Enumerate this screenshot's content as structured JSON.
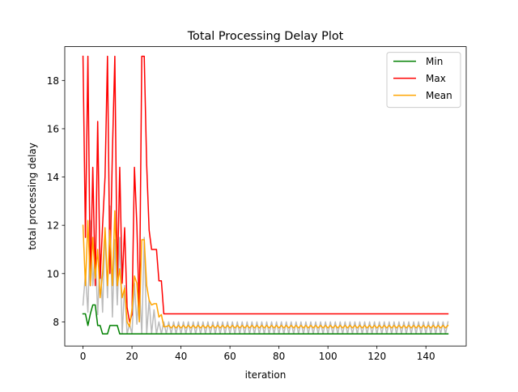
{
  "chart_data": {
    "type": "line",
    "title": "Total Processing Delay Plot",
    "xlabel": "iteration",
    "ylabel": "total processing delay",
    "xlim": [
      -7.45,
      156.45
    ],
    "ylim": [
      7.0,
      19.4
    ],
    "xticks": [
      0,
      20,
      40,
      60,
      80,
      100,
      120,
      140
    ],
    "yticks": [
      8,
      10,
      12,
      14,
      16,
      18
    ],
    "legend_position": "top-right",
    "series": [
      {
        "name": "Min",
        "color": "#008000",
        "x": [
          0,
          1,
          2,
          3,
          4,
          5,
          6,
          7,
          8,
          9,
          10,
          11,
          12,
          13,
          14,
          15,
          16,
          17,
          18,
          19,
          20,
          21,
          22,
          23,
          24,
          25,
          26,
          27,
          28,
          29,
          30,
          31,
          32,
          33,
          34,
          149
        ],
        "y": [
          8.33,
          8.33,
          7.85,
          8.33,
          8.7,
          8.7,
          7.85,
          7.85,
          7.5,
          7.5,
          7.5,
          7.85,
          7.85,
          7.85,
          7.85,
          7.5,
          7.5,
          7.5,
          7.5,
          7.5,
          7.5,
          7.5,
          7.5,
          7.5,
          7.5,
          7.5,
          7.5,
          7.5,
          7.5,
          7.5,
          7.5,
          7.5,
          7.5,
          7.5,
          7.5,
          7.5
        ]
      },
      {
        "name": "Max",
        "color": "#ff0000",
        "x": [
          0,
          1,
          2,
          3,
          4,
          5,
          6,
          7,
          8,
          9,
          10,
          11,
          12,
          13,
          14,
          15,
          16,
          17,
          18,
          19,
          20,
          21,
          22,
          23,
          24,
          25,
          26,
          27,
          28,
          29,
          30,
          31,
          32,
          33,
          149
        ],
        "y": [
          19.0,
          11.5,
          19.0,
          9.5,
          14.4,
          9.5,
          16.3,
          9.8,
          12.0,
          14.0,
          19.0,
          10.0,
          15.0,
          19.0,
          9.5,
          14.4,
          9.6,
          11.9,
          8.6,
          8.0,
          8.3,
          14.4,
          12.0,
          8.2,
          19.0,
          19.0,
          14.5,
          11.8,
          11.0,
          11.0,
          11.0,
          9.7,
          9.7,
          8.33,
          8.33
        ]
      },
      {
        "name": "Mean",
        "color": "#ffa500",
        "x": [
          0,
          1,
          2,
          3,
          4,
          5,
          6,
          7,
          8,
          9,
          10,
          11,
          12,
          13,
          14,
          15,
          16,
          17,
          18,
          19,
          20,
          21,
          22,
          23,
          24,
          25,
          26,
          27,
          28,
          29,
          30,
          31,
          32,
          33,
          34,
          35,
          36,
          37,
          38,
          39,
          40,
          41,
          42,
          43,
          44,
          45,
          46,
          47,
          48,
          49,
          50,
          51,
          52,
          53,
          54,
          55,
          56,
          57,
          58,
          59,
          60,
          61,
          62,
          63,
          64,
          65,
          66,
          67,
          68,
          69,
          70,
          71,
          72,
          73,
          74,
          75,
          76,
          77,
          78,
          79,
          80,
          81,
          82,
          83,
          84,
          85,
          86,
          87,
          88,
          89,
          90,
          91,
          92,
          93,
          94,
          95,
          96,
          97,
          98,
          99,
          100,
          101,
          102,
          103,
          104,
          105,
          106,
          107,
          108,
          109,
          110,
          111,
          112,
          113,
          114,
          115,
          116,
          117,
          118,
          119,
          120,
          121,
          122,
          123,
          124,
          125,
          126,
          127,
          128,
          129,
          130,
          131,
          132,
          133,
          134,
          135,
          136,
          137,
          138,
          139,
          140,
          141,
          142,
          143,
          144,
          145,
          146,
          147,
          148,
          149
        ],
        "y": [
          12.0,
          9.5,
          12.2,
          9.5,
          11.5,
          9.8,
          11.0,
          9.0,
          10.0,
          11.9,
          9.5,
          11.8,
          9.5,
          12.6,
          9.5,
          10.2,
          9.0,
          9.4,
          8.0,
          7.8,
          8.5,
          9.9,
          9.6,
          8.0,
          11.4,
          11.4,
          9.5,
          8.9,
          8.7,
          8.75,
          8.75,
          8.2,
          8.3,
          7.8,
          7.8,
          7.85,
          7.75,
          7.85,
          7.75,
          7.85,
          7.75,
          7.85,
          7.75,
          7.85,
          7.75,
          7.85,
          7.75,
          7.85,
          7.75,
          7.85,
          7.75,
          7.85,
          7.75,
          7.85,
          7.75,
          7.85,
          7.75,
          7.85,
          7.75,
          7.85,
          7.75,
          7.85,
          7.75,
          7.85,
          7.75,
          7.85,
          7.75,
          7.85,
          7.75,
          7.85,
          7.75,
          7.85,
          7.75,
          7.85,
          7.75,
          7.85,
          7.75,
          7.85,
          7.75,
          7.85,
          7.75,
          7.85,
          7.75,
          7.85,
          7.75,
          7.85,
          7.75,
          7.85,
          7.75,
          7.85,
          7.75,
          7.85,
          7.75,
          7.85,
          7.75,
          7.85,
          7.75,
          7.85,
          7.75,
          7.85,
          7.75,
          7.85,
          7.75,
          7.85,
          7.75,
          7.85,
          7.75,
          7.85,
          7.75,
          7.85,
          7.75,
          7.85,
          7.75,
          7.85,
          7.75,
          7.85,
          7.75,
          7.85,
          7.75,
          7.85,
          7.75,
          7.85,
          7.75,
          7.85,
          7.75,
          7.85,
          7.75,
          7.85,
          7.75,
          7.85,
          7.75,
          7.85,
          7.75,
          7.85,
          7.75,
          7.85,
          7.75,
          7.85,
          7.75,
          7.85,
          7.75,
          7.85,
          7.75,
          7.85,
          7.75,
          7.85,
          7.75,
          7.85,
          7.75,
          7.85
        ]
      },
      {
        "color": "#bbbbbb",
        "x": [
          0,
          1,
          2,
          3,
          4,
          5,
          6,
          7,
          8,
          9,
          10,
          11,
          12,
          13,
          14,
          15,
          16,
          17,
          18,
          19,
          20,
          21,
          22,
          23,
          24,
          25,
          26,
          27,
          28,
          29,
          30,
          31,
          32,
          33,
          34,
          35,
          36,
          37,
          38,
          39,
          40,
          41,
          42,
          43,
          44,
          45,
          46,
          47,
          48,
          49,
          50,
          51,
          52,
          53,
          54,
          55,
          56,
          57,
          58,
          59,
          60,
          61,
          62,
          63,
          64,
          65,
          66,
          67,
          68,
          69,
          70,
          71,
          72,
          73,
          74,
          75,
          76,
          77,
          78,
          79,
          80,
          81,
          82,
          83,
          84,
          85,
          86,
          87,
          88,
          89,
          90,
          91,
          92,
          93,
          94,
          95,
          96,
          97,
          98,
          99,
          100,
          101,
          102,
          103,
          104,
          105,
          106,
          107,
          108,
          109,
          110,
          111,
          112,
          113,
          114,
          115,
          116,
          117,
          118,
          119,
          120,
          121,
          122,
          123,
          124,
          125,
          126,
          127,
          128,
          129,
          130,
          131,
          132,
          133,
          134,
          135,
          136,
          137,
          138,
          139,
          140,
          141,
          142,
          143,
          144,
          145,
          146,
          147,
          148,
          149
        ],
        "y": [
          8.7,
          10.0,
          8.4,
          12.2,
          9.5,
          11.0,
          8.3,
          10.8,
          8.4,
          11.8,
          9.0,
          12.8,
          8.2,
          11.4,
          8.7,
          11.5,
          7.5,
          9.5,
          7.5,
          7.9,
          7.5,
          9.6,
          7.9,
          9.5,
          7.5,
          11.5,
          7.5,
          8.9,
          7.5,
          8.5,
          7.5,
          8.0,
          7.5,
          8.0,
          7.5,
          8.0,
          7.5,
          8.0,
          7.5,
          8.0,
          7.5,
          8.0,
          7.5,
          8.0,
          7.5,
          8.0,
          7.5,
          8.0,
          7.5,
          8.0,
          7.5,
          8.0,
          7.5,
          8.0,
          7.5,
          8.0,
          7.5,
          8.0,
          7.5,
          8.0,
          7.5,
          8.0,
          7.5,
          8.0,
          7.5,
          8.0,
          7.5,
          8.0,
          7.5,
          8.0,
          7.5,
          8.0,
          7.5,
          8.0,
          7.5,
          8.0,
          7.5,
          8.0,
          7.5,
          8.0,
          7.5,
          8.0,
          7.5,
          8.0,
          7.5,
          8.0,
          7.5,
          8.0,
          7.5,
          8.0,
          7.5,
          8.0,
          7.5,
          8.0,
          7.5,
          8.0,
          7.5,
          8.0,
          7.5,
          8.0,
          7.5,
          8.0,
          7.5,
          8.0,
          7.5,
          8.0,
          7.5,
          8.0,
          7.5,
          8.0,
          7.5,
          8.0,
          7.5,
          8.0,
          7.5,
          8.0,
          7.5,
          8.0,
          7.5,
          8.0,
          7.5,
          8.0,
          7.5,
          8.0,
          7.5,
          8.0,
          7.5,
          8.0,
          7.5,
          8.0,
          7.5,
          8.0,
          7.5,
          8.0,
          7.5,
          8.0,
          7.5,
          8.0,
          7.5,
          8.0,
          7.5,
          8.0,
          7.5,
          8.0,
          7.5,
          8.0,
          7.5,
          8.0,
          7.5,
          8.0
        ]
      }
    ]
  }
}
